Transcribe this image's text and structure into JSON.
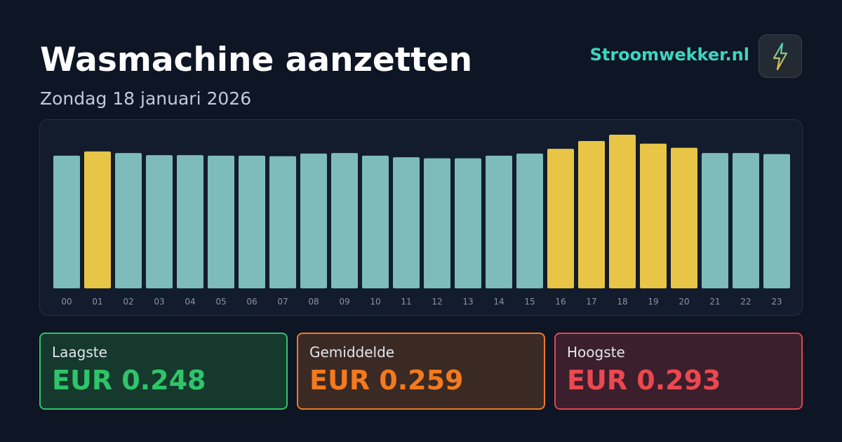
{
  "header": {
    "title": "Wasmachine aanzetten",
    "subtitle": "Zondag 18 januari 2026",
    "brand": "Stroomwekker.nl"
  },
  "chart_data": {
    "type": "bar",
    "categories": [
      "00",
      "01",
      "02",
      "03",
      "04",
      "05",
      "06",
      "07",
      "08",
      "09",
      "10",
      "11",
      "12",
      "13",
      "14",
      "15",
      "16",
      "17",
      "18",
      "19",
      "20",
      "21",
      "22",
      "23"
    ],
    "values": [
      0.253,
      0.261,
      0.258,
      0.254,
      0.254,
      0.253,
      0.253,
      0.252,
      0.257,
      0.258,
      0.253,
      0.25,
      0.248,
      0.248,
      0.253,
      0.257,
      0.266,
      0.281,
      0.293,
      0.276,
      0.268,
      0.258,
      0.258,
      0.256
    ],
    "colors": [
      "#7dbcba",
      "#e8c547",
      "#7dbcba",
      "#7dbcba",
      "#7dbcba",
      "#7dbcba",
      "#7dbcba",
      "#7dbcba",
      "#7dbcba",
      "#7dbcba",
      "#7dbcba",
      "#7dbcba",
      "#7dbcba",
      "#7dbcba",
      "#7dbcba",
      "#7dbcba",
      "#e8c547",
      "#e8c547",
      "#e8c547",
      "#e8c547",
      "#e8c547",
      "#7dbcba",
      "#7dbcba",
      "#7dbcba"
    ]
  },
  "stats": [
    {
      "label": "Laagste",
      "value": "EUR 0.248"
    },
    {
      "label": "Gemiddelde",
      "value": "EUR 0.259"
    },
    {
      "label": "Hoogste",
      "value": "EUR 0.293"
    }
  ]
}
